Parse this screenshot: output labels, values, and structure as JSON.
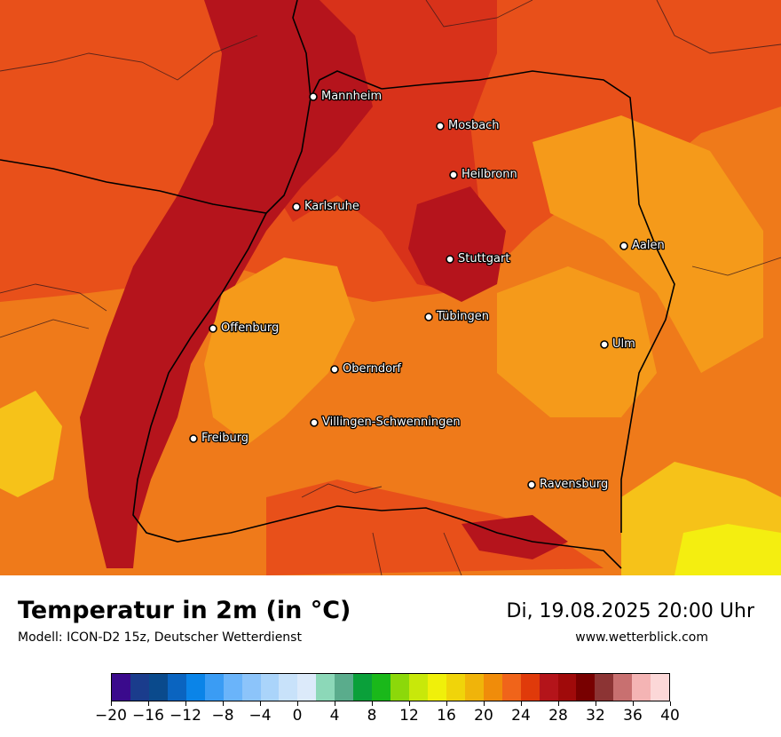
{
  "map": {
    "region": "Baden-Württemberg",
    "colors": {
      "hot_core": "#b5141c",
      "very_warm": "#d8321a",
      "warm": "#e8501a",
      "orange": "#ef7a1a",
      "light_orange": "#f59a1a",
      "yellow": "#f6c219",
      "bright_yellow": "#f4ee10"
    },
    "cities": [
      {
        "name": "Mannheim"
      },
      {
        "name": "Mosbach"
      },
      {
        "name": "Heilbronn"
      },
      {
        "name": "Karlsruhe"
      },
      {
        "name": "Aalen"
      },
      {
        "name": "Stuttgart"
      },
      {
        "name": "Tübingen"
      },
      {
        "name": "Offenburg"
      },
      {
        "name": "Ulm"
      },
      {
        "name": "Oberndorf"
      },
      {
        "name": "Villingen-Schwenningen"
      },
      {
        "name": "Freiburg"
      },
      {
        "name": "Ravensburg"
      }
    ]
  },
  "footer": {
    "title": "Temperatur in 2m (in °C)",
    "model": "Modell: ICON-D2 15z, Deutscher Wetterdienst",
    "datetime": "Di, 19.08.2025 20:00 Uhr",
    "website": "www.wetterblick.com"
  },
  "colorbar": {
    "colors": [
      "#3a0a8c",
      "#1a3c8c",
      "#0a4a8c",
      "#0a64c0",
      "#0a84e8",
      "#3a9cf4",
      "#6ab4fa",
      "#8cc4fa",
      "#aad4fa",
      "#c8e2fa",
      "#dceafa",
      "#8cd8b8",
      "#5aac8c",
      "#0aa03a",
      "#1ab81a",
      "#8cd80a",
      "#c8e80a",
      "#f0f00a",
      "#f0d40a",
      "#f0b40a",
      "#f08c0a",
      "#f0641a",
      "#e03a0a",
      "#b4141a",
      "#a00a0a",
      "#780000",
      "#8c3434",
      "#c87070",
      "#f4b4b4",
      "#fcd8d8"
    ],
    "tick_labels": [
      "−20",
      "−16",
      "−12",
      "−8",
      "−4",
      "0",
      "4",
      "8",
      "12",
      "16",
      "20",
      "24",
      "28",
      "32",
      "36",
      "40"
    ]
  }
}
